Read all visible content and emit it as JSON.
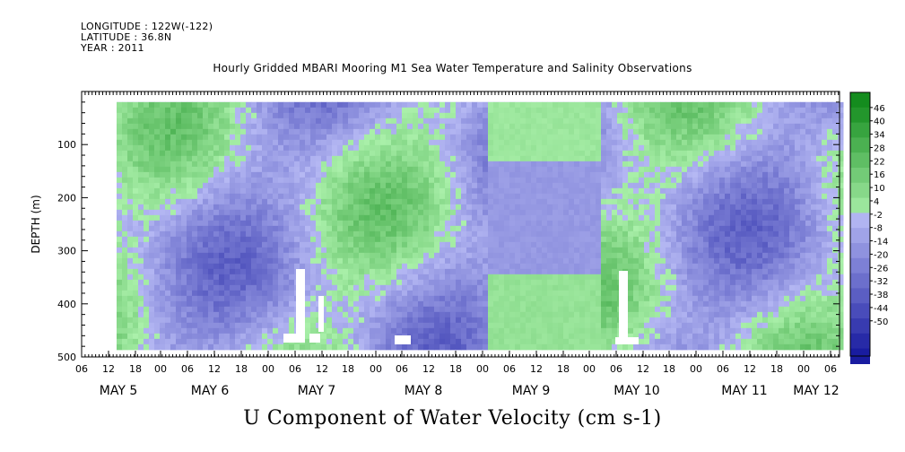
{
  "header": {
    "longitude": "LONGITUDE : 122W(-122)",
    "latitude": "LATITUDE : 36.8N",
    "year": "YEAR : 2011"
  },
  "chart_data": {
    "type": "heatmap",
    "title": "Hourly Gridded MBARI Mooring M1 Sea Water Temperature and Salinity Observations",
    "xlabel": "U Component of Water Velocity (cm s-1)",
    "ylabel": "DEPTH (m)",
    "y_range": [
      0,
      500
    ],
    "y_reversed": true,
    "y_ticks": [
      100,
      200,
      300,
      400,
      500
    ],
    "x_range_hours": [
      "2011-05-04T06:00",
      "2011-05-12T08:00"
    ],
    "hour_ticks": [
      "06",
      "12",
      "18",
      "00",
      "06",
      "12",
      "18",
      "00",
      "06",
      "12",
      "18",
      "00",
      "06",
      "12",
      "18",
      "00",
      "06",
      "12",
      "18",
      "00",
      "06",
      "12",
      "18",
      "00",
      "06",
      "12",
      "18",
      "00",
      "06",
      "12",
      "18",
      "00",
      "06"
    ],
    "date_labels": [
      "MAY  5",
      "MAY  6",
      "MAY  7",
      "MAY  8",
      "MAY  9",
      "MAY 10",
      "MAY 11",
      "MAY 12"
    ],
    "colorbar": {
      "min": -50,
      "max": 50,
      "labels": [
        "46",
        "40",
        "34",
        "28",
        "22",
        "16",
        "10",
        "4",
        "-2",
        "-8",
        "-14",
        "-20",
        "-26",
        "-32",
        "-38",
        "-44",
        "-50"
      ]
    },
    "data_coverage": {
      "depth_range": [
        20,
        480
      ]
    }
  }
}
